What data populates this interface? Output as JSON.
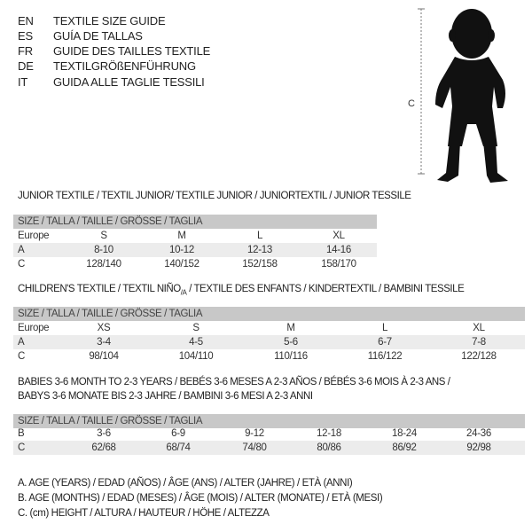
{
  "header": {
    "languages": [
      {
        "code": "EN",
        "title": "TEXTILE SIZE GUIDE"
      },
      {
        "code": "ES",
        "title": "GUÍA DE TALLAS"
      },
      {
        "code": "FR",
        "title": "GUIDE DES TAILLES TEXTILE"
      },
      {
        "code": "DE",
        "title": "TEXTILGRÖßENFÜHRUNG"
      },
      {
        "code": "IT",
        "title": "GUIDA ALLE TAGLIE TESSILI"
      }
    ],
    "figure_label": "C"
  },
  "junior": {
    "title": "JUNIOR TEXTILE / TEXTIL JUNIOR/ TEXTILE JUNIOR / JUNIORTEXTIL / JUNIOR TESSILE",
    "size_header": "SIZE / TALLA / TAILLE / GRÖSSE / TAGLIA",
    "rows": [
      {
        "label": "Europe",
        "values": [
          "S",
          "M",
          "L",
          "XL"
        ]
      },
      {
        "label": "A",
        "values": [
          "8-10",
          "10-12",
          "12-13",
          "14-16"
        ]
      },
      {
        "label": "C",
        "values": [
          "128/140",
          "140/152",
          "152/158",
          "158/170"
        ]
      }
    ]
  },
  "children": {
    "title_a": "CHILDREN'S TEXTILE / TEXTIL NIÑO",
    "title_sub": "/A",
    "title_b": " / TEXTILE DES ENFANTS / KINDERTEXTIL / BAMBINI TESSILE",
    "size_header": "SIZE / TALLA / TAILLE / GRÖSSE / TAGLIA",
    "rows": [
      {
        "label": "Europe",
        "values": [
          "XS",
          "S",
          "M",
          "L",
          "XL"
        ]
      },
      {
        "label": "A",
        "values": [
          "3-4",
          "4-5",
          "5-6",
          "6-7",
          "7-8"
        ]
      },
      {
        "label": "C",
        "values": [
          "98/104",
          "104/110",
          "110/116",
          "116/122",
          "122/128"
        ]
      }
    ]
  },
  "babies": {
    "title_line1": "BABIES 3-6 MONTH TO 2-3 YEARS / BEBÉS 3-6 MESES A 2-3 AÑOS / BÉBÉS 3-6 MOIS À 2-3 ANS /",
    "title_line2": "BABYS 3-6 MONATE BIS 2-3 JAHRE / BAMBINI 3-6 MESI A 2-3 ANNI",
    "size_header": "SIZE / TALLA / TAILLE / GRÖSSE / TAGLIA",
    "rows": [
      {
        "label": "B",
        "values": [
          "3-6",
          "6-9",
          "9-12",
          "12-18",
          "18-24",
          "24-36"
        ]
      },
      {
        "label": "C",
        "values": [
          "62/68",
          "68/74",
          "74/80",
          "80/86",
          "86/92",
          "92/98"
        ]
      }
    ]
  },
  "legend": [
    "A. AGE (YEARS) / EDAD (AÑOS) / ÂGE (ANS) / ALTER (JAHRE) / ETÀ (ANNI)",
    "B. AGE (MONTHS) / EDAD (MESES) / ÂGE (MOIS) / ALTER (MONATE) / ETÀ (MESI)",
    "C. (cm) HEIGHT / ALTURA / HAUTEUR / HÖHE / ALTEZZA"
  ]
}
